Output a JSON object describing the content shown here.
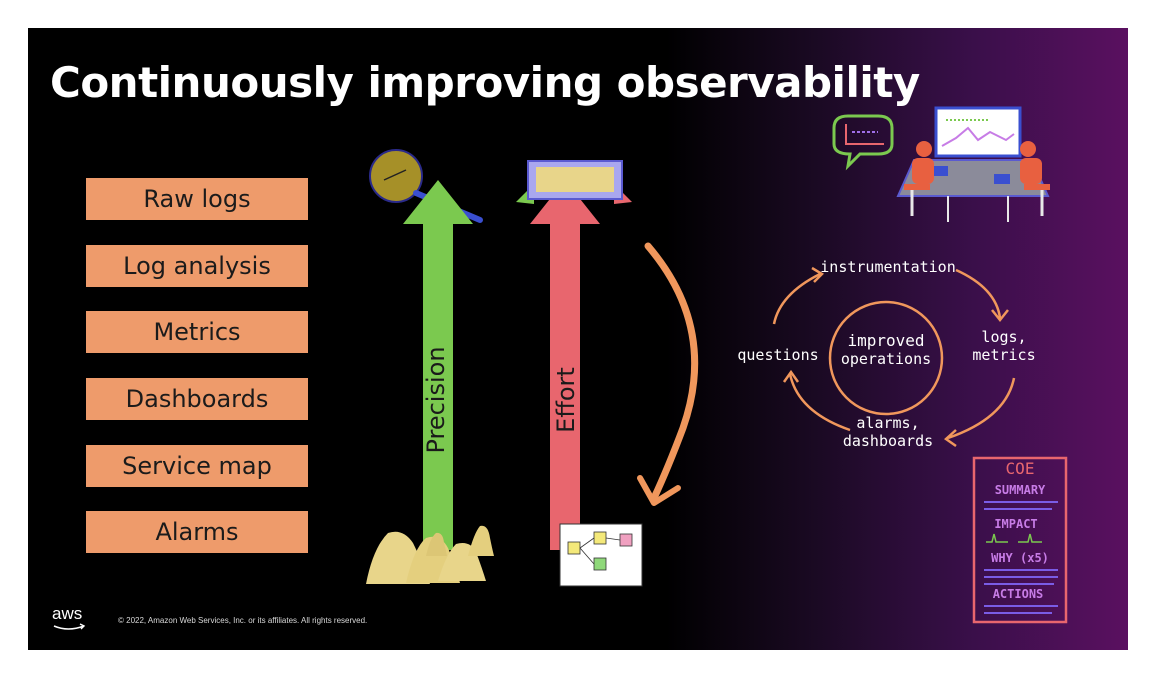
{
  "slide": {
    "title": "Continuously improving observability",
    "stages": [
      "Raw logs",
      "Log analysis",
      "Metrics",
      "Dashboards",
      "Service map",
      "Alarms"
    ],
    "precision_label": "Precision",
    "effort_label": "Effort",
    "cycle": {
      "center_line1": "improved",
      "center_line2": "operations",
      "top": "instrumentation",
      "right_line1": "logs,",
      "right_line2": "metrics",
      "bottom_line1": "alarms,",
      "bottom_line2": "dashboards",
      "left": "questions"
    },
    "coe_doc": {
      "title": "COE",
      "sections": [
        "SUMMARY",
        "IMPACT",
        "WHY (x5)",
        "ACTIONS"
      ]
    },
    "footer": {
      "logo": "aws",
      "copyright": "© 2022, Amazon Web Services, Inc. or its affiliates. All rights reserved."
    },
    "colors": {
      "stage_fill": "#ee9b6b",
      "precision_arrow": "#7bc94f",
      "effort_arrow": "#e8666e",
      "cycle_stroke": "#f0975c",
      "coe_stroke": "#e8666e",
      "coe_section": "#c77ce6"
    }
  }
}
